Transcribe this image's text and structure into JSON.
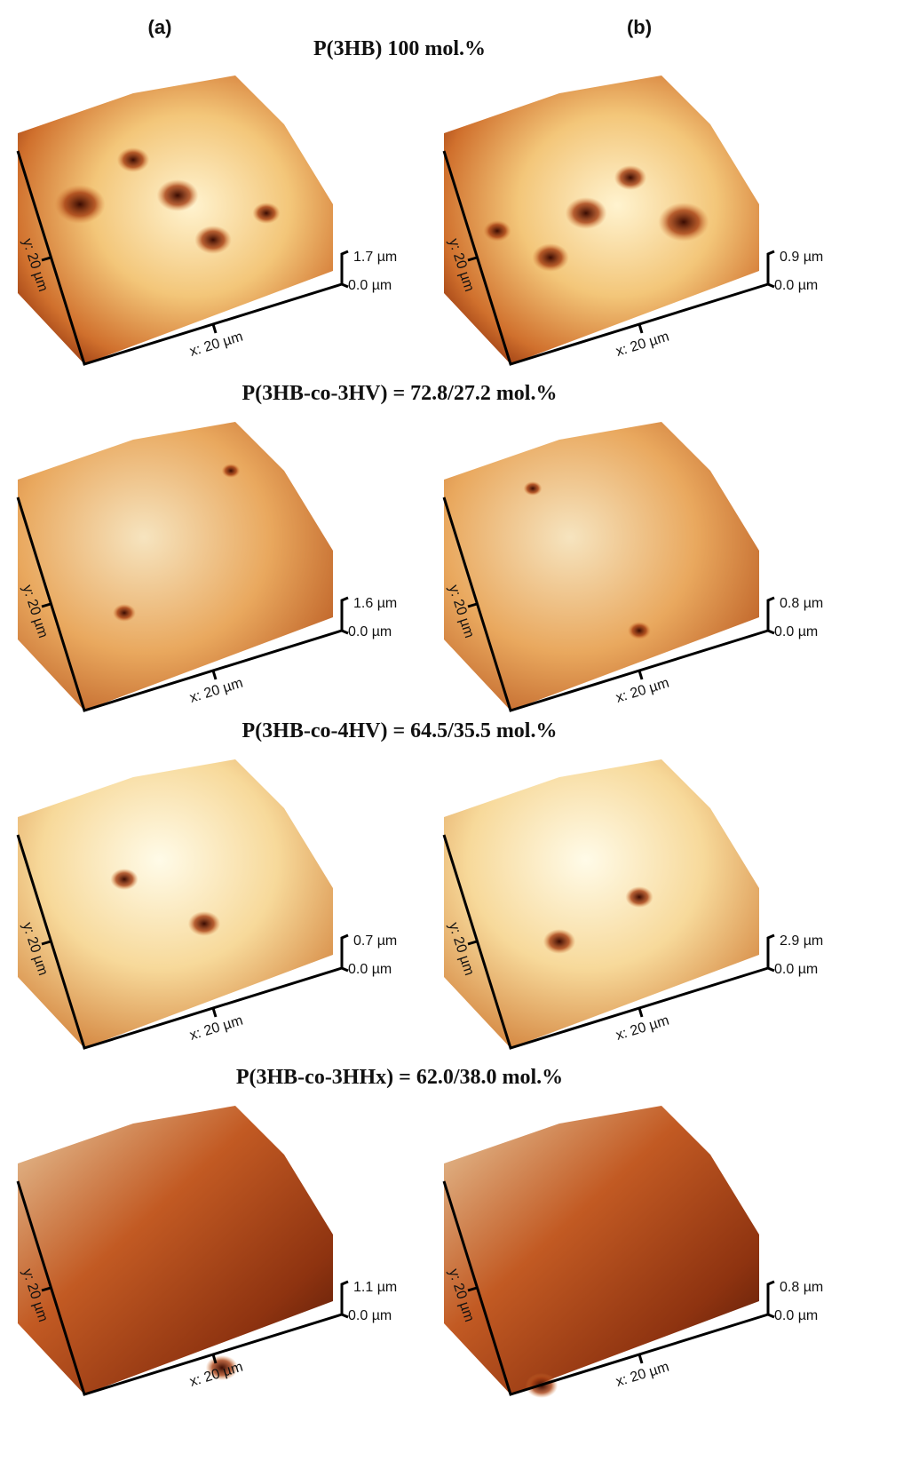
{
  "columns": [
    "(a)",
    "(b)"
  ],
  "rows": [
    {
      "title": "P(3HB) 100 mol.%",
      "panels": [
        {
          "y_label": "y: 20 µm",
          "x_label": "x: 20 µm",
          "z_max": "1.7 µm",
          "z_min": "0.0 µm"
        },
        {
          "y_label": "y: 20 µm",
          "x_label": "x: 20 µm",
          "z_max": "0.9 µm",
          "z_min": "0.0 µm"
        }
      ]
    },
    {
      "title": "P(3HB-co-3HV) = 72.8/27.2 mol.%",
      "panels": [
        {
          "y_label": "y: 20 µm",
          "x_label": "x: 20 µm",
          "z_max": "1.6 µm",
          "z_min": "0.0 µm"
        },
        {
          "y_label": "y: 20 µm",
          "x_label": "x: 20 µm",
          "z_max": "0.8 µm",
          "z_min": "0.0 µm"
        }
      ]
    },
    {
      "title": "P(3HB-co-4HV) = 64.5/35.5 mol.%",
      "panels": [
        {
          "y_label": "y: 20 µm",
          "x_label": "x: 20 µm",
          "z_max": "0.7 µm",
          "z_min": "0.0 µm"
        },
        {
          "y_label": "y: 20 µm",
          "x_label": "x: 20 µm",
          "z_max": "2.9 µm",
          "z_min": "0.0 µm"
        }
      ]
    },
    {
      "title": "P(3HB-co-3HHx) = 62.0/38.0 mol.%",
      "panels": [
        {
          "y_label": "y: 20 µm",
          "x_label": "x: 20 µm",
          "z_max": "1.1 µm",
          "z_min": "0.0 µm"
        },
        {
          "y_label": "y: 20 µm",
          "x_label": "x: 20 µm",
          "z_max": "0.8 µm",
          "z_min": "0.0 µm"
        }
      ]
    }
  ]
}
